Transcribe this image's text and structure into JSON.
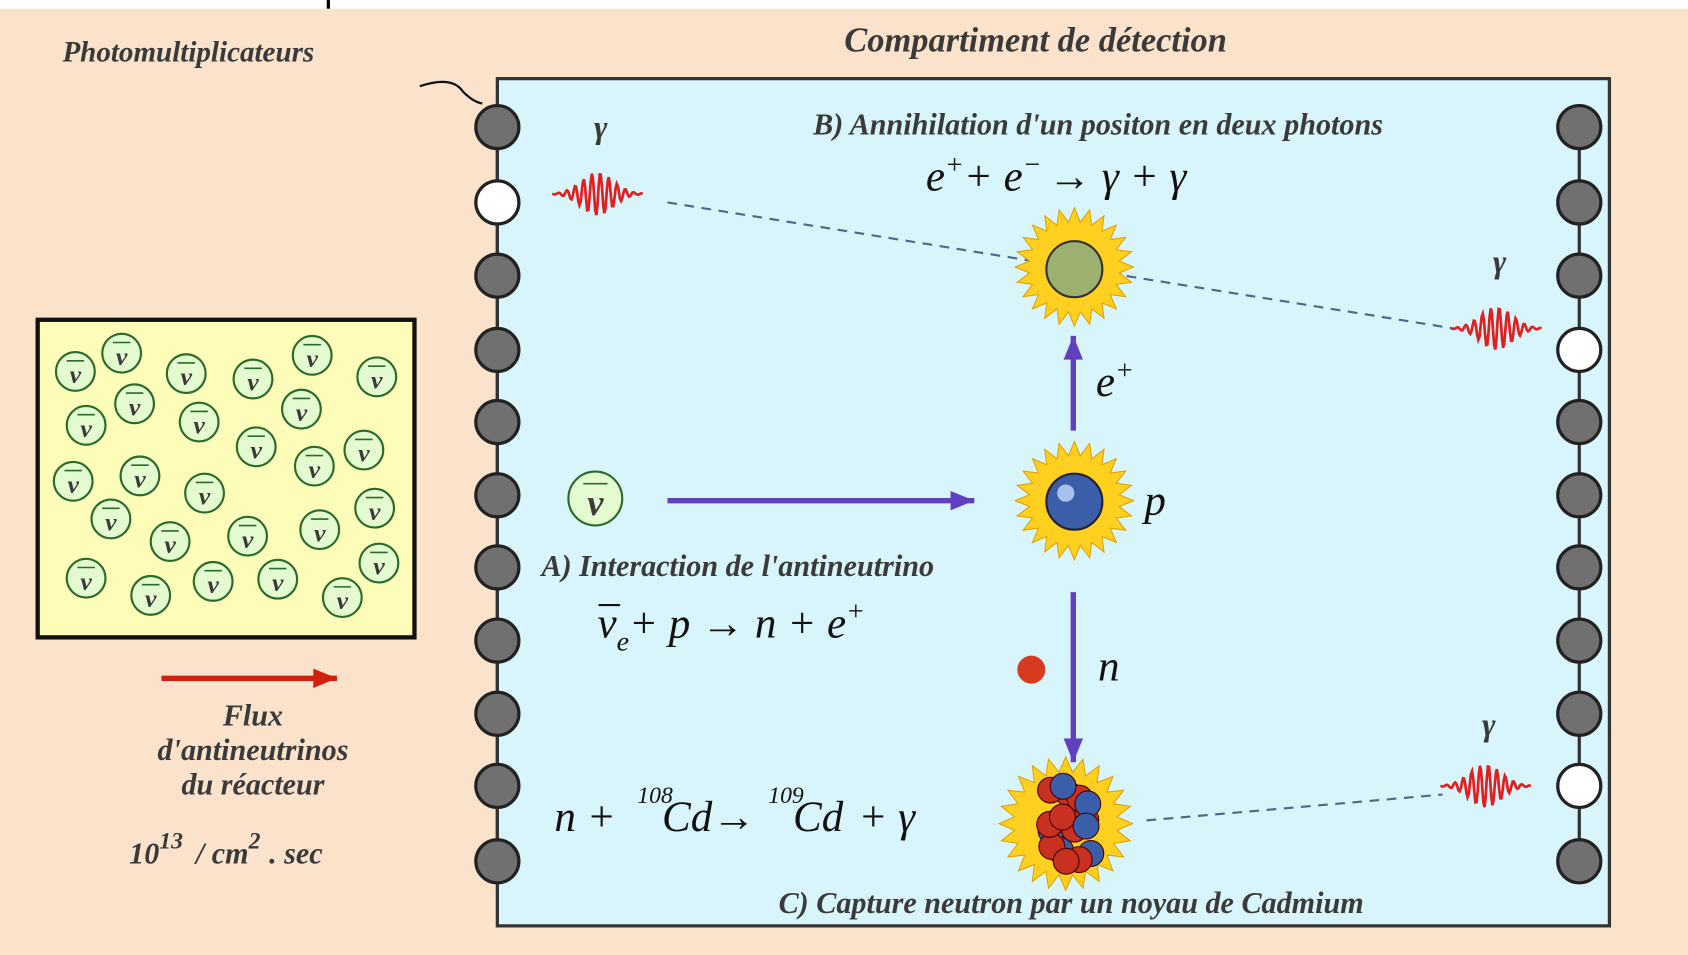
{
  "title": "Compartiment de détection",
  "photomultipliers_label": "Photomultiplicateurs",
  "neutrino_symbol": "ν",
  "gamma": "γ",
  "flux": {
    "lines": [
      "Flux",
      "d'antineutrinos",
      "du réacteur"
    ],
    "rate": [
      "10",
      "13",
      "/ cm",
      "2",
      ". sec"
    ]
  },
  "stage_a": {
    "title": "A) Interaction de l'antineutrino",
    "equation": [
      "ν",
      "e",
      "+ p →  n + e",
      "+"
    ]
  },
  "stage_b": {
    "title": "B) Annihilation d'un positon en deux photons",
    "equation": [
      "e",
      "+",
      "+ e",
      "−",
      "→  γ + γ"
    ]
  },
  "stage_c": {
    "title": "C) Capture neutron par un noyau de Cadmium",
    "equation": [
      "n  +",
      "108",
      "Cd",
      "→",
      "109",
      "Cd",
      "+ γ"
    ]
  },
  "particles": {
    "positron": [
      "e",
      "+"
    ],
    "proton": "p",
    "neutron": "n"
  }
}
